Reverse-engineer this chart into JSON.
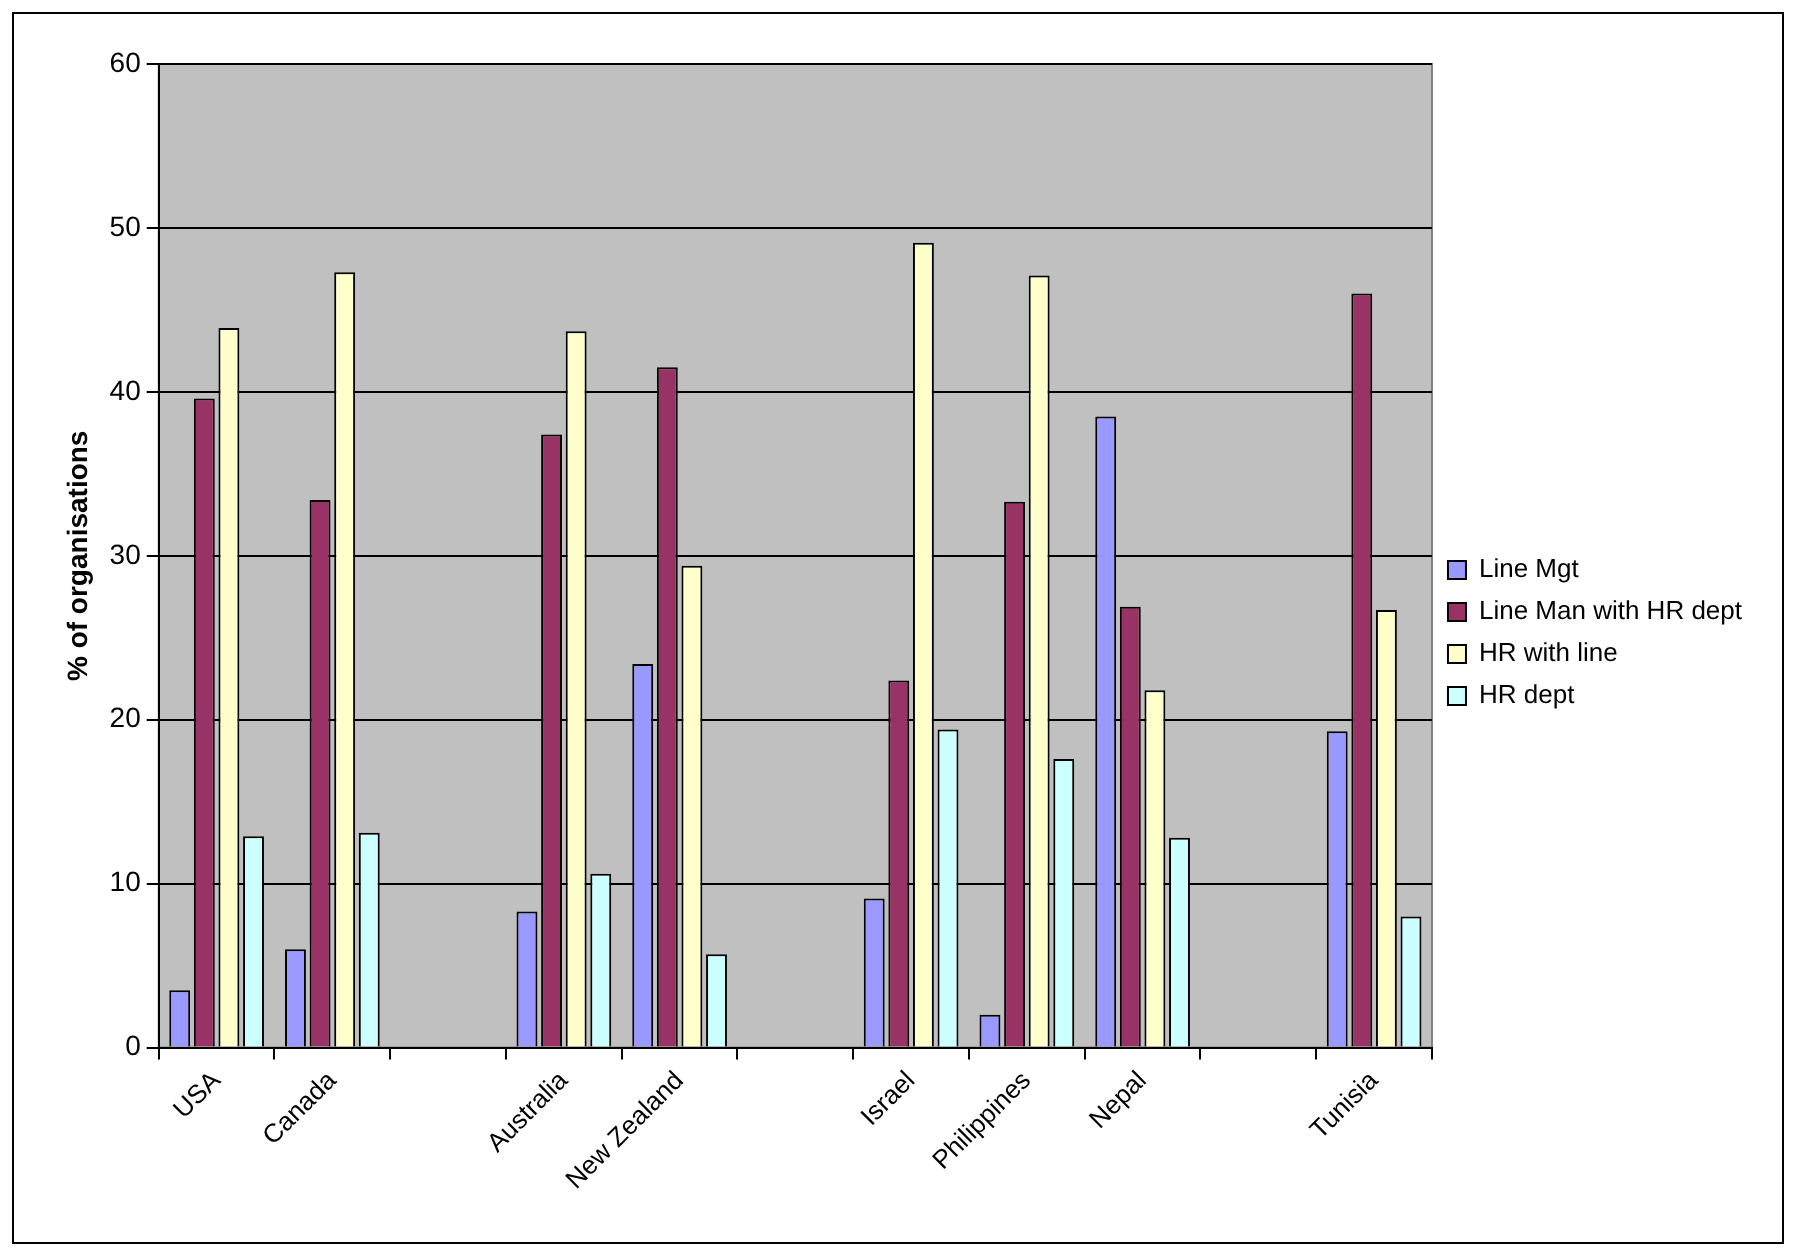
{
  "chart_data": {
    "type": "bar",
    "ylabel": "% of organisations",
    "categories": [
      "USA",
      "Canada",
      null,
      "Australia",
      "New Zealand",
      null,
      "Israel",
      "Philippines",
      "Nepal",
      null,
      "Tunisia"
    ],
    "series": [
      {
        "name": "Line Mgt",
        "color": "#9999ff",
        "values": [
          3.5,
          6.0,
          null,
          8.3,
          23.4,
          null,
          9.1,
          2.0,
          38.5,
          null,
          19.3
        ]
      },
      {
        "name": "Line Man with HR dept",
        "color": "#993366",
        "values": [
          39.6,
          33.4,
          null,
          37.4,
          41.5,
          null,
          22.4,
          33.3,
          26.9,
          null,
          46.0
        ]
      },
      {
        "name": "HR with line",
        "color": "#ffffcc",
        "values": [
          43.9,
          47.3,
          null,
          43.7,
          29.4,
          null,
          49.1,
          47.1,
          21.8,
          null,
          26.7
        ]
      },
      {
        "name": "HR dept",
        "color": "#ccffff",
        "values": [
          12.9,
          13.1,
          null,
          10.6,
          5.7,
          null,
          19.4,
          17.6,
          12.8,
          null,
          8.0
        ]
      }
    ],
    "ylim": [
      0,
      60
    ],
    "yticks": [
      0,
      10,
      20,
      30,
      40,
      50,
      60
    ],
    "grid": "y",
    "legend": "right"
  }
}
